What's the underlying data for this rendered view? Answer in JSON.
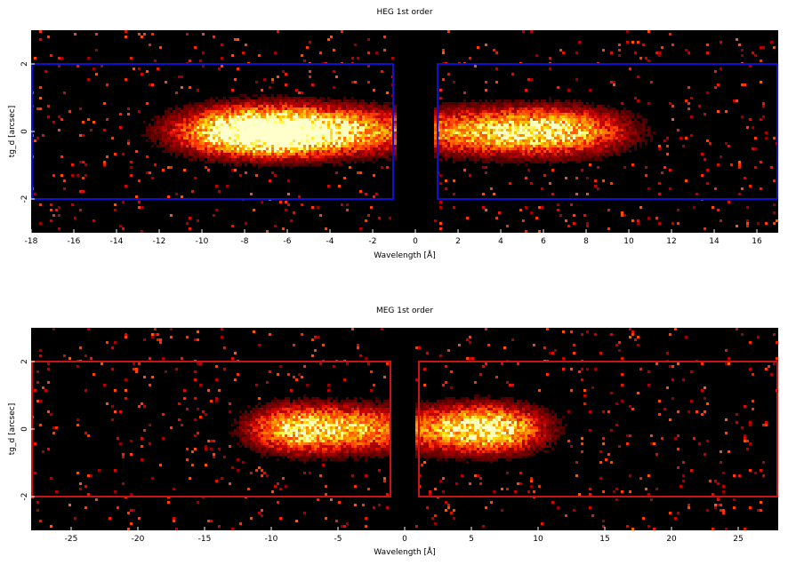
{
  "chart_data": [
    {
      "type": "heatmap",
      "title": "HEG 1st order",
      "xlabel": "Wavelength [Å]",
      "ylabel": "tg_d [arcsec]",
      "xlim": [
        -18,
        17
      ],
      "ylim": [
        -3,
        3
      ],
      "xticks": [
        "-18",
        "-16",
        "-14",
        "-12",
        "-10",
        "-8",
        "-6",
        "-4",
        "-2",
        "0",
        "2",
        "4",
        "6",
        "8",
        "10",
        "12",
        "14",
        "16"
      ],
      "xtick_values": [
        -18,
        -16,
        -14,
        -12,
        -10,
        -8,
        -6,
        -4,
        -2,
        0,
        2,
        4,
        6,
        8,
        10,
        12,
        14,
        16
      ],
      "yticks": [
        "-2",
        "0",
        "2"
      ],
      "ytick_values": [
        -2,
        0,
        2
      ],
      "box_color": "#1010d0",
      "regions": [
        {
          "x": [
            -18,
            -1
          ],
          "y": [
            -2,
            2
          ]
        },
        {
          "x": [
            1,
            17
          ],
          "y": [
            -2,
            2
          ]
        }
      ],
      "peaks": [
        {
          "x": -8.0,
          "amp": 1.0
        },
        {
          "x": -6.3,
          "amp": 0.85
        },
        {
          "x": -3.3,
          "amp": 0.7
        },
        {
          "x": 2.5,
          "amp": 0.65
        },
        {
          "x": 6.5,
          "amp": 1.0
        }
      ],
      "colormap": "heat"
    },
    {
      "type": "heatmap",
      "title": "MEG 1st order",
      "xlabel": "Wavelength [Å]",
      "ylabel": "tg_d [arcsec]",
      "xlim": [
        -28,
        28
      ],
      "ylim": [
        -3,
        3
      ],
      "xticks": [
        "-25",
        "-20",
        "-15",
        "-10",
        "-5",
        "0",
        "5",
        "10",
        "15",
        "20",
        "25"
      ],
      "xtick_values": [
        -25,
        -20,
        -15,
        -10,
        -5,
        0,
        5,
        10,
        15,
        20,
        25
      ],
      "yticks": [
        "-2",
        "0",
        "2"
      ],
      "ytick_values": [
        -2,
        0,
        2
      ],
      "box_color": "#c81414",
      "regions": [
        {
          "x": [
            -28,
            -1
          ],
          "y": [
            -2,
            2
          ]
        },
        {
          "x": [
            1,
            28
          ],
          "y": [
            -2,
            2
          ]
        }
      ],
      "peaks": [
        {
          "x": -8.0,
          "amp": 1.0
        },
        {
          "x": -3.0,
          "amp": 0.7
        },
        {
          "x": 7.0,
          "amp": 1.0
        },
        {
          "x": 3.0,
          "amp": 0.6
        }
      ],
      "colormap": "heat"
    }
  ]
}
